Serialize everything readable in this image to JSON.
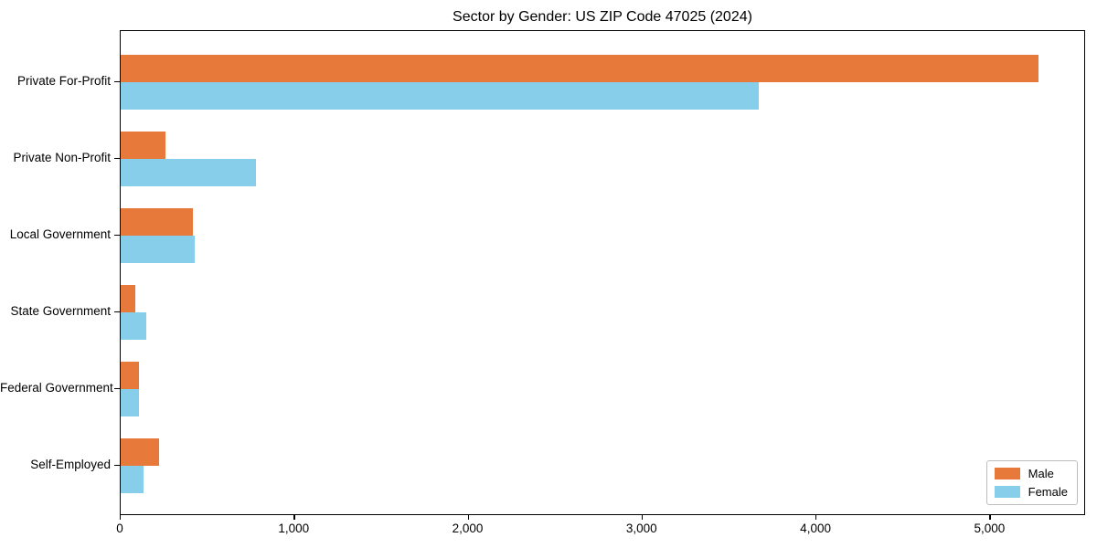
{
  "title": "Sector by Gender: US ZIP Code 47025 (2024)",
  "colors": {
    "male": "#e7793a",
    "female": "#87ceeb",
    "axis": "#000000",
    "legend_border": "#bdbdbd",
    "background": "#ffffff"
  },
  "legend": {
    "position": "lower right",
    "items": [
      {
        "label": "Male",
        "color": "#e7793a"
      },
      {
        "label": "Female",
        "color": "#87ceeb"
      }
    ]
  },
  "chart_data": {
    "type": "bar",
    "orientation": "horizontal",
    "title": "Sector by Gender: US ZIP Code 47025 (2024)",
    "categories": [
      "Private For-Profit",
      "Private Non-Profit",
      "Local Government",
      "State Government",
      "Federal Government",
      "Self-Employed"
    ],
    "series": [
      {
        "name": "Male",
        "color": "#e7793a",
        "values": [
          5275,
          255,
          415,
          85,
          105,
          220
        ]
      },
      {
        "name": "Female",
        "color": "#87ceeb",
        "values": [
          3670,
          780,
          425,
          145,
          105,
          130
        ]
      }
    ],
    "xlabel": "",
    "ylabel": "",
    "xlim": [
      0,
      5550
    ],
    "x_ticks": [
      0,
      1000,
      2000,
      3000,
      4000,
      5000
    ],
    "x_tick_labels": [
      "0",
      "1,000",
      "2,000",
      "3,000",
      "4,000",
      "5,000"
    ],
    "grid": false,
    "legend_position": "lower right"
  }
}
